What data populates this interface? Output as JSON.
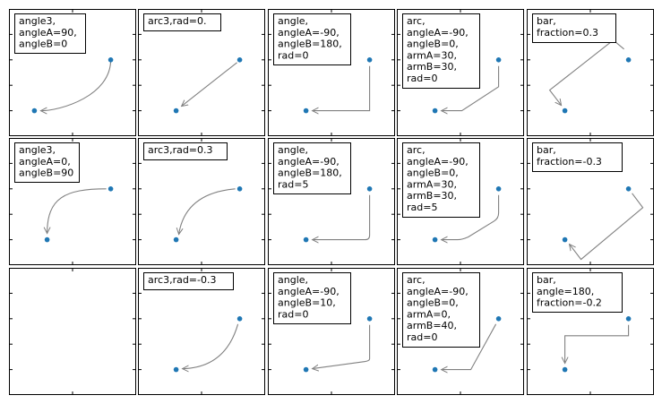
{
  "figure": {
    "rows": 3,
    "cols": 5,
    "point_color": "#1f77b4",
    "connector_color": "#808080",
    "frame_color": "#000000"
  },
  "chart_data": [
    {
      "type": "scatter",
      "connection": "angle3",
      "label_lines": [
        "angle3,",
        "angleA=90,",
        "angleB=0"
      ],
      "points": [
        [
          0.2,
          0.2
        ],
        [
          0.8,
          0.6
        ]
      ],
      "xlim": [
        0,
        1
      ],
      "ylim": [
        0,
        1
      ]
    },
    {
      "type": "scatter",
      "connection": "arc3",
      "label_lines": [
        "arc3,rad=0."
      ],
      "points": [
        [
          0.3,
          0.2
        ],
        [
          0.8,
          0.6
        ]
      ],
      "xlim": [
        0,
        1
      ],
      "ylim": [
        0,
        1
      ]
    },
    {
      "type": "scatter",
      "connection": "angle",
      "label_lines": [
        "angle,",
        "angleA=-90,",
        "angleB=180,",
        "rad=0"
      ],
      "points": [
        [
          0.3,
          0.2
        ],
        [
          0.8,
          0.6
        ]
      ],
      "xlim": [
        0,
        1
      ],
      "ylim": [
        0,
        1
      ]
    },
    {
      "type": "scatter",
      "connection": "arc",
      "label_lines": [
        "arc,",
        "angleA=-90,",
        "angleB=0,",
        "armA=30,",
        "armB=30,",
        "rad=0"
      ],
      "points": [
        [
          0.3,
          0.2
        ],
        [
          0.8,
          0.6
        ]
      ],
      "xlim": [
        0,
        1
      ],
      "ylim": [
        0,
        1
      ]
    },
    {
      "type": "scatter",
      "connection": "bar",
      "label_lines": [
        "bar,",
        "fraction=0.3"
      ],
      "points": [
        [
          0.3,
          0.2
        ],
        [
          0.8,
          0.6
        ]
      ],
      "xlim": [
        0,
        1
      ],
      "ylim": [
        0,
        1
      ]
    },
    {
      "type": "scatter",
      "connection": "angle3",
      "label_lines": [
        "angle3,",
        "angleA=0,",
        "angleB=90"
      ],
      "points": [
        [
          0.3,
          0.2
        ],
        [
          0.8,
          0.6
        ]
      ],
      "xlim": [
        0,
        1
      ],
      "ylim": [
        0,
        1
      ]
    },
    {
      "type": "scatter",
      "connection": "arc3",
      "label_lines": [
        "arc3,rad=0.3"
      ],
      "points": [
        [
          0.3,
          0.2
        ],
        [
          0.8,
          0.6
        ]
      ],
      "xlim": [
        0,
        1
      ],
      "ylim": [
        0,
        1
      ]
    },
    {
      "type": "scatter",
      "connection": "angle",
      "label_lines": [
        "angle,",
        "angleA=-90,",
        "angleB=180,",
        "rad=5"
      ],
      "points": [
        [
          0.3,
          0.2
        ],
        [
          0.8,
          0.6
        ]
      ],
      "xlim": [
        0,
        1
      ],
      "ylim": [
        0,
        1
      ]
    },
    {
      "type": "scatter",
      "connection": "arc",
      "label_lines": [
        "arc,",
        "angleA=-90,",
        "angleB=0,",
        "armA=30,",
        "armB=30,",
        "rad=5"
      ],
      "points": [
        [
          0.3,
          0.2
        ],
        [
          0.8,
          0.6
        ]
      ],
      "xlim": [
        0,
        1
      ],
      "ylim": [
        0,
        1
      ]
    },
    {
      "type": "scatter",
      "connection": "bar",
      "label_lines": [
        "bar,",
        "fraction=-0.3"
      ],
      "points": [
        [
          0.3,
          0.2
        ],
        [
          0.8,
          0.6
        ]
      ],
      "xlim": [
        0,
        1
      ],
      "ylim": [
        0,
        1
      ]
    },
    {
      "type": "scatter",
      "connection": "none",
      "label_lines": [],
      "points": [],
      "xlim": [
        0,
        1
      ],
      "ylim": [
        0,
        1
      ]
    },
    {
      "type": "scatter",
      "connection": "arc3",
      "label_lines": [
        "arc3,rad=-0.3"
      ],
      "points": [
        [
          0.3,
          0.2
        ],
        [
          0.8,
          0.6
        ]
      ],
      "xlim": [
        0,
        1
      ],
      "ylim": [
        0,
        1
      ]
    },
    {
      "type": "scatter",
      "connection": "angle",
      "label_lines": [
        "angle,",
        "angleA=-90,",
        "angleB=10,",
        "rad=0"
      ],
      "points": [
        [
          0.3,
          0.2
        ],
        [
          0.8,
          0.6
        ]
      ],
      "xlim": [
        0,
        1
      ],
      "ylim": [
        0,
        1
      ]
    },
    {
      "type": "scatter",
      "connection": "arc",
      "label_lines": [
        "arc,",
        "angleA=-90,",
        "angleB=0,",
        "armA=0,",
        "armB=40,",
        "rad=0"
      ],
      "points": [
        [
          0.3,
          0.2
        ],
        [
          0.8,
          0.6
        ]
      ],
      "xlim": [
        0,
        1
      ],
      "ylim": [
        0,
        1
      ]
    },
    {
      "type": "scatter",
      "connection": "bar",
      "label_lines": [
        "bar,",
        "angle=180,",
        "fraction=-0.2"
      ],
      "points": [
        [
          0.3,
          0.2
        ],
        [
          0.8,
          0.6
        ]
      ],
      "xlim": [
        0,
        1
      ],
      "ylim": [
        0,
        1
      ]
    }
  ]
}
